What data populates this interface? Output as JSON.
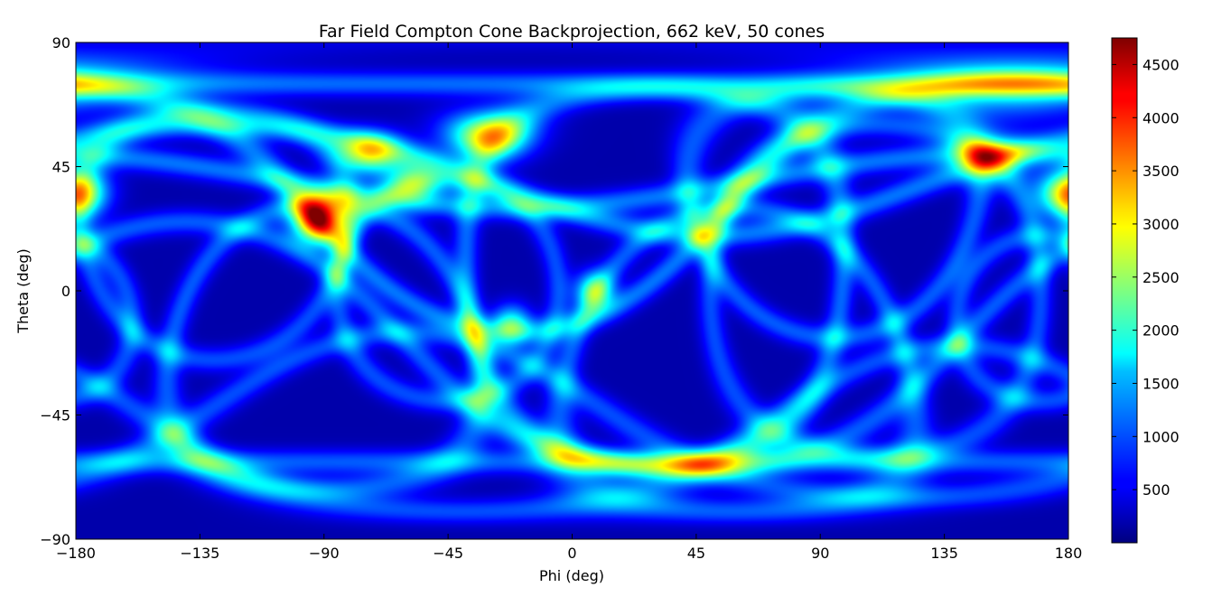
{
  "chart_data": {
    "type": "heatmap",
    "title": "Far Field Compton Cone Backprojection, 662 keV, 50 cones",
    "xlabel": "Phi (deg)",
    "ylabel": "Theta (deg)",
    "xlim": [
      -180,
      180
    ],
    "ylim": [
      -90,
      90
    ],
    "x_ticks": [
      -180,
      -135,
      -90,
      -45,
      0,
      45,
      90,
      135,
      180
    ],
    "y_ticks": [
      -90,
      -45,
      0,
      45,
      90
    ],
    "colormap": "jet",
    "colorbar": {
      "range": [
        0,
        4750
      ],
      "ticks": [
        500,
        1000,
        1500,
        2000,
        2500,
        3000,
        3500,
        4000,
        4500
      ]
    },
    "background_value": 200,
    "peak": {
      "phi": -92,
      "theta": 26,
      "value": 4700
    },
    "hotspots": [
      {
        "phi": -92,
        "theta": 26,
        "value": 4700,
        "spread": 6
      },
      {
        "phi": -30,
        "theta": 56,
        "value": 3300,
        "spread": 6
      },
      {
        "phi": -74,
        "theta": 50,
        "value": 3000,
        "spread": 5
      },
      {
        "phi": -58,
        "theta": 40,
        "value": 2100,
        "spread": 6
      },
      {
        "phi": 8,
        "theta": 0,
        "value": 2200,
        "spread": 5
      },
      {
        "phi": -22,
        "theta": -12,
        "value": 2000,
        "spread": 5
      },
      {
        "phi": 160,
        "theta": 75,
        "value": 2000,
        "spread": 8
      },
      {
        "phi": 152,
        "theta": 48,
        "value": 1900,
        "spread": 6
      },
      {
        "phi": 178,
        "theta": 35,
        "value": 1900,
        "spread": 6
      },
      {
        "phi": -178,
        "theta": 35,
        "value": 1800,
        "spread": 6
      }
    ],
    "cones": [
      {
        "phi0": -20,
        "theta0": 45,
        "radius": 60,
        "value": 1500
      },
      {
        "phi0": 30,
        "theta0": 5,
        "radius": 68,
        "value": 1400
      },
      {
        "phi0": 95,
        "theta0": 28,
        "radius": 45,
        "value": 1300
      },
      {
        "phi0": -140,
        "theta0": -45,
        "radius": 70,
        "value": 1300
      },
      {
        "phi0": -20,
        "theta0": 80,
        "radius": 50,
        "value": 1500
      },
      {
        "phi0": 60,
        "theta0": -25,
        "radius": 55,
        "value": 1300
      },
      {
        "phi0": -90,
        "theta0": -20,
        "radius": 52,
        "value": 1300
      },
      {
        "phi0": 140,
        "theta0": -60,
        "radius": 40,
        "value": 1200
      },
      {
        "phi0": 0,
        "theta0": -90,
        "radius": 28,
        "value": 1300
      },
      {
        "phi0": 0,
        "theta0": 90,
        "radius": 15,
        "value": 1400
      },
      {
        "phi0": -45,
        "theta0": 0,
        "radius": 40,
        "value": 1200
      },
      {
        "phi0": 110,
        "theta0": 0,
        "radius": 60,
        "value": 1200
      },
      {
        "phi0": -130,
        "theta0": 20,
        "radius": 45,
        "value": 1200
      },
      {
        "phi0": 170,
        "theta0": -10,
        "radius": 30,
        "value": 1200
      },
      {
        "phi0": 50,
        "theta0": 70,
        "radius": 50,
        "value": 1500
      },
      {
        "phi0": -60,
        "theta0": -60,
        "radius": 45,
        "value": 1200
      }
    ]
  }
}
